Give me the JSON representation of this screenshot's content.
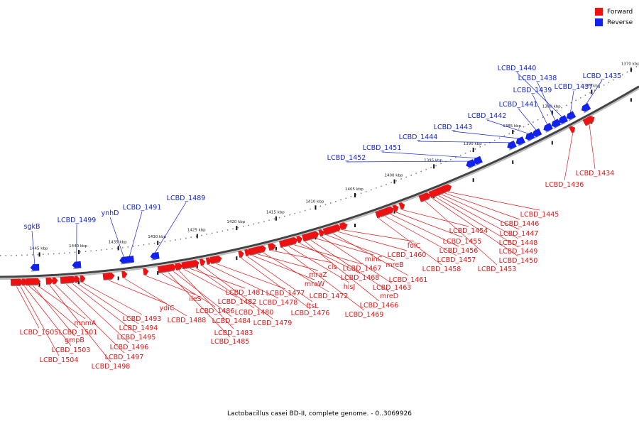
{
  "legend": {
    "forward": {
      "label": "Forward",
      "color": "#ee1111"
    },
    "reverse": {
      "label": "Reverse",
      "color": "#1122ee"
    }
  },
  "caption": "Lactobacillus casei BD-II, complete genome. - 0..3069926",
  "ruler_unit": "kbp",
  "ruler_ticks": [
    1445,
    1440,
    1435,
    1430,
    1425,
    1420,
    1415,
    1410,
    1405,
    1400,
    1395,
    1390,
    1385,
    1380,
    1375,
    1370
  ],
  "reverse_genes": [
    {
      "name": "sgkB",
      "kbp": 1445.6
    },
    {
      "name": "LCBD_1499",
      "kbp": 1440.3
    },
    {
      "name": "ynhD",
      "kbp": 1434.3
    },
    {
      "name": "LCBD_1491",
      "kbp": 1433.6
    },
    {
      "name": "LCBD_1489",
      "kbp": 1430.4
    },
    {
      "name": "LCBD_1452",
      "kbp": 1390.4
    },
    {
      "name": "LCBD_1451",
      "kbp": 1389.5
    },
    {
      "name": "LCBD_1444",
      "kbp": 1385.2
    },
    {
      "name": "LCBD_1443",
      "kbp": 1384.1
    },
    {
      "name": "LCBD_1442",
      "kbp": 1382.9
    },
    {
      "name": "LCBD_1441",
      "kbp": 1382.0
    },
    {
      "name": "LCBD_1439",
      "kbp": 1380.6
    },
    {
      "name": "LCBD_1438",
      "kbp": 1379.6
    },
    {
      "name": "LCBD_1440",
      "kbp": 1378.7
    },
    {
      "name": "LCBD_1437",
      "kbp": 1377.7
    },
    {
      "name": "LCBD_1435",
      "kbp": 1375.8
    }
  ],
  "forward_genes": [
    {
      "name": "LCBD_1505",
      "kbp": 1447.9
    },
    {
      "name": "LCBD_1504",
      "kbp": 1447.4
    },
    {
      "name": "LCBD_1503",
      "kbp": 1446.9
    },
    {
      "name": "LCBD_1501",
      "kbp": 1446.3
    },
    {
      "name": "gmpB",
      "kbp": 1445.8
    },
    {
      "name": "mnmA",
      "kbp": 1445.2
    },
    {
      "name": "LCBD_1498",
      "kbp": 1443.7
    },
    {
      "name": "LCBD_1497",
      "kbp": 1443.0
    },
    {
      "name": "LCBD_1496",
      "kbp": 1441.6
    },
    {
      "name": "LCBD_1495",
      "kbp": 1440.8
    },
    {
      "name": "LCBD_1494",
      "kbp": 1440.2
    },
    {
      "name": "LCBD_1493",
      "kbp": 1439.5
    },
    {
      "name": "ydiC",
      "kbp": 1436.2
    },
    {
      "name": "LCBD_1488",
      "kbp": 1434.2
    },
    {
      "name": "ileS",
      "kbp": 1431.5
    },
    {
      "name": "LCBD_1486",
      "kbp": 1429.5
    },
    {
      "name": "LCBD_1485",
      "kbp": 1428.7
    },
    {
      "name": "LCBD_1484",
      "kbp": 1428.0
    },
    {
      "name": "LCBD_1483",
      "kbp": 1427.3
    },
    {
      "name": "LCBD_1482",
      "kbp": 1426.6
    },
    {
      "name": "LCBD_1481",
      "kbp": 1425.9
    },
    {
      "name": "LCBD_1480",
      "kbp": 1425.2
    },
    {
      "name": "LCBD_1479",
      "kbp": 1424.3
    },
    {
      "name": "LCBD_1478",
      "kbp": 1423.5
    },
    {
      "name": "LCBD_1477",
      "kbp": 1422.6
    },
    {
      "name": "LCBD_1476",
      "kbp": 1419.4
    },
    {
      "name": "ftsL",
      "kbp": 1418.6
    },
    {
      "name": "mraW",
      "kbp": 1418.0
    },
    {
      "name": "mraZ",
      "kbp": 1417.3
    },
    {
      "name": "LCBD_1472",
      "kbp": 1416.6
    },
    {
      "name": "cls",
      "kbp": 1415.5
    },
    {
      "name": "LCBD_1469",
      "kbp": 1414.2
    },
    {
      "name": "hisJ",
      "kbp": 1413.4
    },
    {
      "name": "LCBD_1467",
      "kbp": 1412.7
    },
    {
      "name": "LCBD_1468",
      "kbp": 1412.0
    },
    {
      "name": "LCBD_1466",
      "kbp": 1411.3
    },
    {
      "name": "mreD",
      "kbp": 1410.6
    },
    {
      "name": "minC",
      "kbp": 1409.9
    },
    {
      "name": "LCBD_1463",
      "kbp": 1409.2
    },
    {
      "name": "mreB",
      "kbp": 1408.5
    },
    {
      "name": "LCBD_1461",
      "kbp": 1407.8
    },
    {
      "name": "LCBD_1460",
      "kbp": 1407.1
    },
    {
      "name": "folC",
      "kbp": 1406.4
    },
    {
      "name": "LCBD_1458",
      "kbp": 1402.0
    },
    {
      "name": "LCBD_1457",
      "kbp": 1401.2
    },
    {
      "name": "LCBD_1456",
      "kbp": 1400.5
    },
    {
      "name": "LCBD_1455",
      "kbp": 1399.8
    },
    {
      "name": "LCBD_1454",
      "kbp": 1399.0
    },
    {
      "name": "LCBD_1453",
      "kbp": 1396.1
    },
    {
      "name": "LCBD_1450",
      "kbp": 1395.2
    },
    {
      "name": "LCBD_1449",
      "kbp": 1394.8
    },
    {
      "name": "LCBD_1448",
      "kbp": 1394.4
    },
    {
      "name": "LCBD_1447",
      "kbp": 1394.0
    },
    {
      "name": "LCBD_1446",
      "kbp": 1393.6
    },
    {
      "name": "LCBD_1445",
      "kbp": 1393.2
    },
    {
      "name": "LCBD_1436",
      "kbp": 1377.4
    },
    {
      "name": "LCBD_1434",
      "kbp": 1375.3
    }
  ]
}
